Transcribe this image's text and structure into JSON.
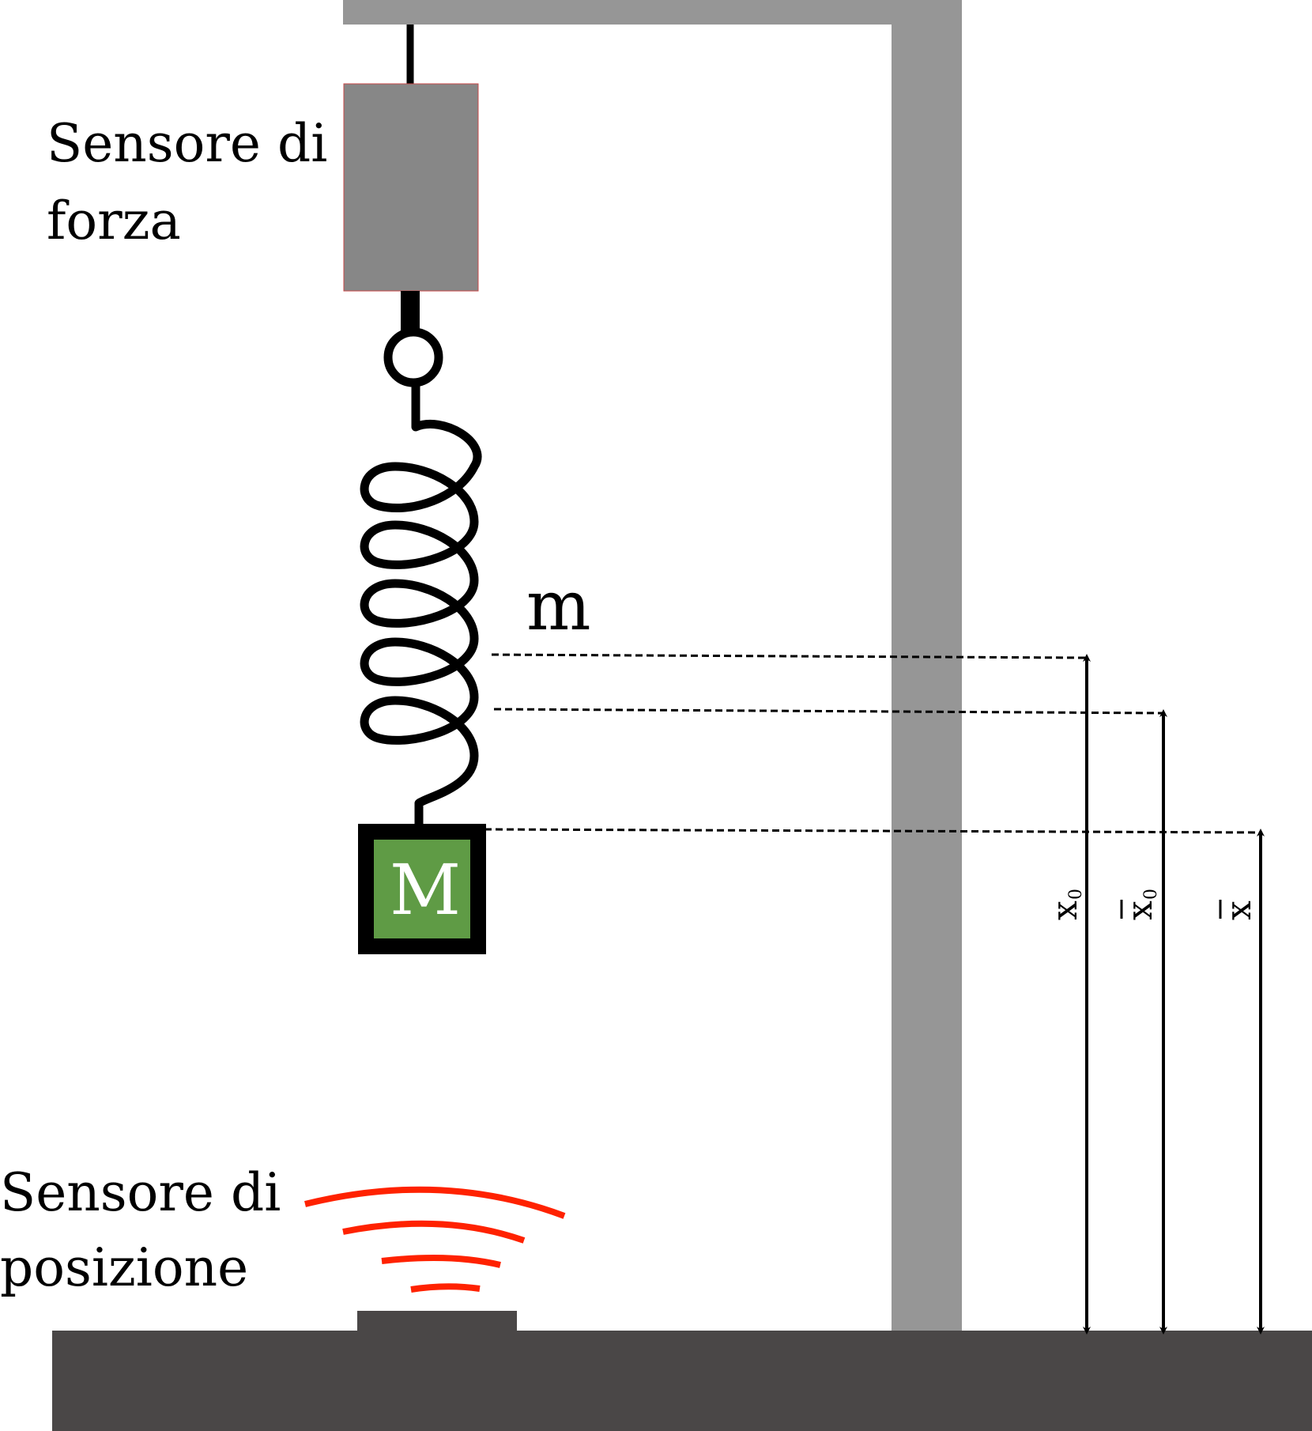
{
  "labels": {
    "force_sensor_line1": "Sensore di",
    "force_sensor_line2": "forza",
    "position_sensor_line1": "Sensore di",
    "position_sensor_line2": "posizione",
    "spring_mass": "m",
    "mass": "M"
  },
  "measures": {
    "x0": {
      "symbol": "x",
      "subscript": "0",
      "bar": false
    },
    "x0_bar": {
      "symbol": "x",
      "subscript": "0",
      "bar": true
    },
    "x_bar": {
      "symbol": "x",
      "subscript": "",
      "bar": true
    }
  },
  "colors": {
    "frame": "#969696",
    "sensor_body": "#878787",
    "base": "#4a4747",
    "mass_fill": "#5f9b45",
    "mass_border": "#000000",
    "waves": "#ff2200",
    "lines": "#000000"
  }
}
